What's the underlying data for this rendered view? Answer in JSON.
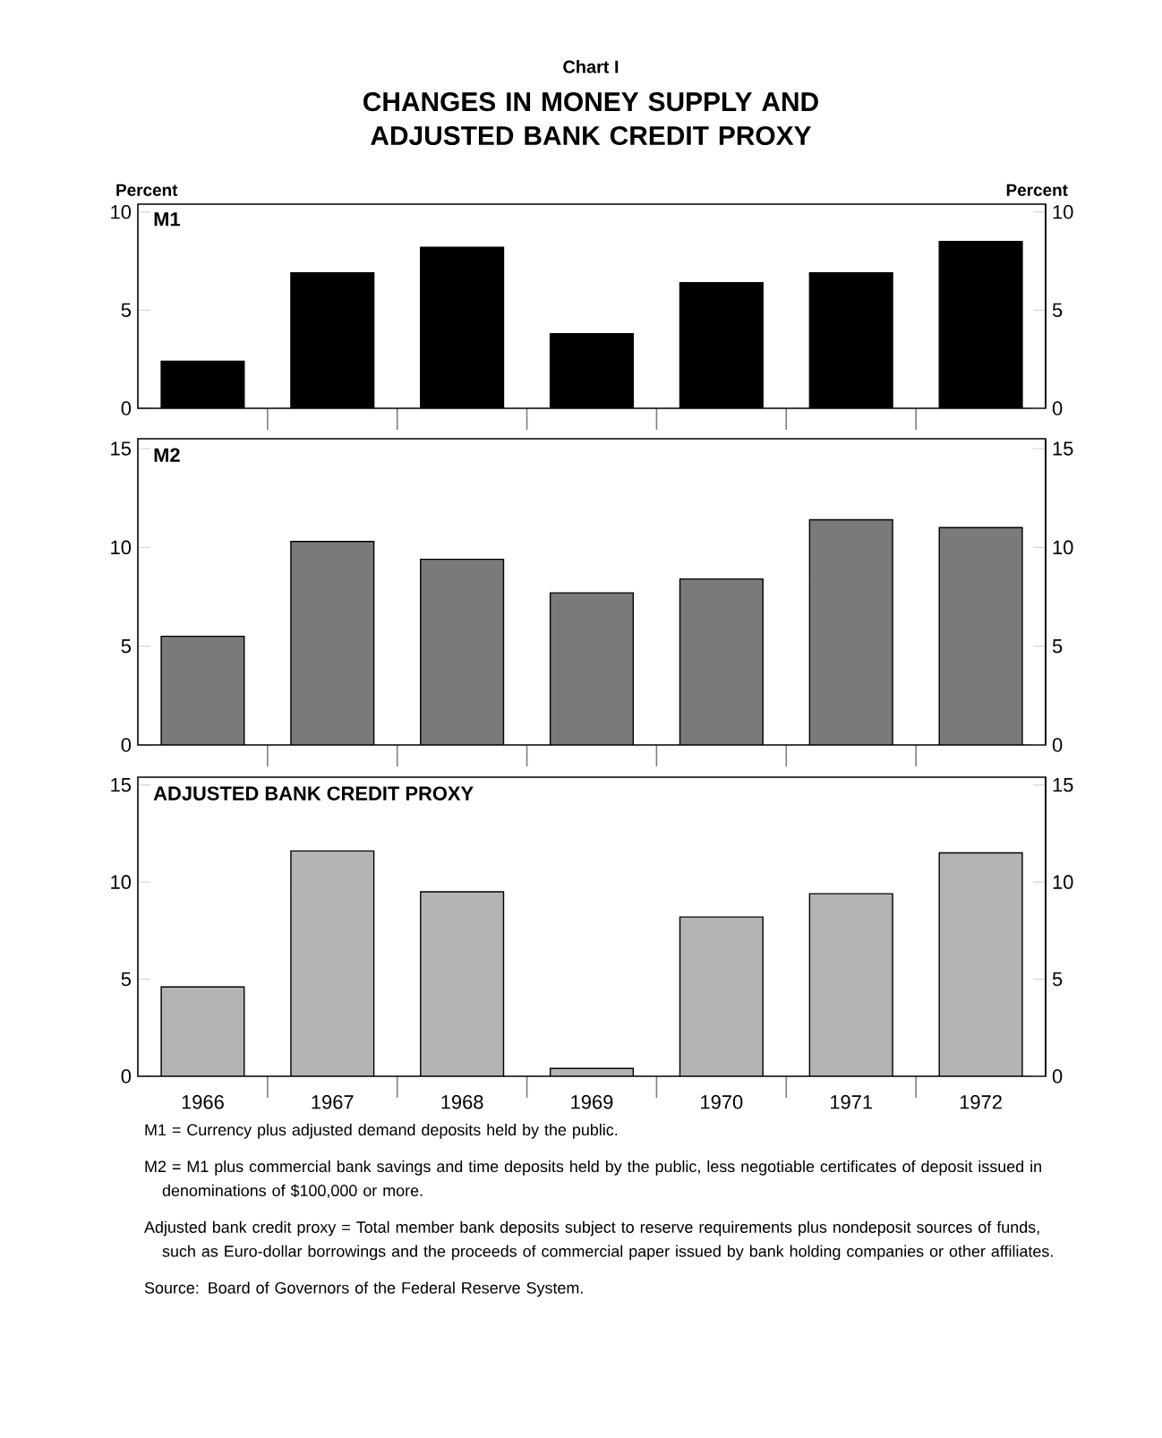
{
  "chart_data": [
    {
      "type": "bar",
      "title": "M1",
      "annotations": [
        "Chart I",
        "CHANGES IN MONEY SUPPLY AND ADJUSTED BANK CREDIT PROXY"
      ],
      "ylabel": "Percent",
      "y2label": "Percent",
      "categories": [
        "1966",
        "1967",
        "1968",
        "1969",
        "1970",
        "1971",
        "1972"
      ],
      "series": [
        {
          "color": "#000000",
          "values": [
            2.4,
            6.9,
            8.2,
            3.8,
            6.4,
            6.9,
            8.5
          ]
        }
      ],
      "ylim": [
        0,
        10.4
      ],
      "yticks": [
        0,
        5,
        10
      ],
      "y2lim": [
        0,
        10.4
      ],
      "y2ticks": [
        0,
        5,
        10
      ],
      "tick_labels": "y",
      "grid": false
    },
    {
      "type": "bar",
      "title": "M2",
      "categories": [
        "1966",
        "1967",
        "1968",
        "1969",
        "1970",
        "1971",
        "1972"
      ],
      "series": [
        {
          "color": "#7a7a7a",
          "values": [
            5.5,
            10.3,
            9.4,
            7.7,
            8.4,
            11.4,
            11.0
          ]
        }
      ],
      "ylim": [
        0,
        15.5
      ],
      "yticks": [
        0,
        5,
        10,
        15
      ],
      "y2lim": [
        0,
        15.5
      ],
      "y2ticks": [
        0,
        5,
        10,
        15
      ],
      "tick_labels": "y",
      "grid": false
    },
    {
      "type": "bar",
      "title": "ADJUSTED BANK CREDIT PROXY",
      "categories": [
        "1966",
        "1967",
        "1968",
        "1969",
        "1970",
        "1971",
        "1972"
      ],
      "series": [
        {
          "color": "#b4b4b4",
          "values": [
            4.6,
            11.6,
            9.5,
            0.4,
            8.2,
            9.4,
            11.5
          ]
        }
      ],
      "ylim": [
        0,
        15.4
      ],
      "yticks": [
        0,
        5,
        10,
        15
      ],
      "y2lim": [
        0,
        15.4
      ],
      "y2ticks": [
        0,
        5,
        10,
        15
      ],
      "grid": false,
      "annotations": [
        "M1 = Currency plus adjusted demand deposits held by the public.",
        "M2 = M1 plus commercial bank savings and time deposits held by the public, less negotiable certificates of deposit issued in denominations of $100,000 or more.",
        "Adjusted bank credit proxy = Total member bank deposits subject to reserve requirements plus nondeposit sources of funds, such as Euro-dollar borrowings and the proceeds of commercial paper issued by bank holding companies or other affiliates.",
        "Source: Board of Governors of the Federal Reserve System."
      ]
    }
  ]
}
